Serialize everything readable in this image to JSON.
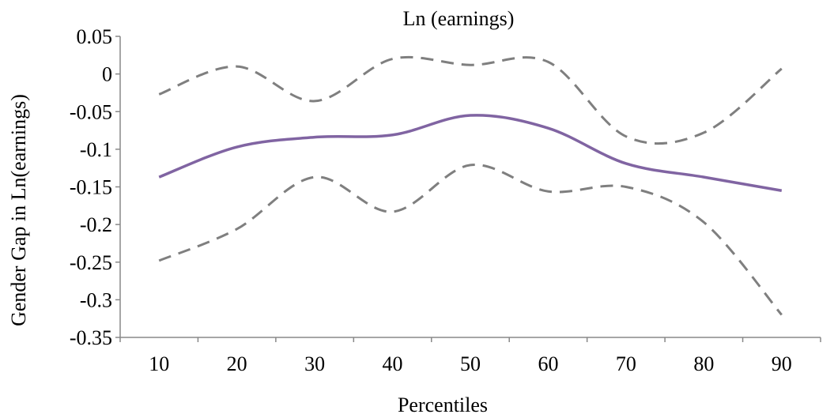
{
  "chart_data": {
    "type": "line",
    "title": "Ln (earnings)",
    "xlabel": "Percentiles",
    "ylabel": "Gender Gap in Ln(earnings)",
    "x": [
      10,
      20,
      30,
      40,
      50,
      60,
      70,
      80,
      90
    ],
    "x_tick_labels": [
      "10",
      "20",
      "30",
      "40",
      "50",
      "60",
      "70",
      "80",
      "90"
    ],
    "ylim": [
      -0.35,
      0.05
    ],
    "y_ticks": [
      0.05,
      0,
      -0.05,
      -0.1,
      -0.15,
      -0.2,
      -0.25,
      -0.3,
      -0.35
    ],
    "y_tick_labels": [
      "0.05",
      "0",
      "-0.05",
      "-0.1",
      "-0.15",
      "-0.2",
      "-0.25",
      "-0.3",
      "-0.35"
    ],
    "grid": false,
    "legend": "none",
    "series": [
      {
        "values": [
          -0.137,
          -0.097,
          -0.084,
          -0.081,
          -0.055,
          -0.072,
          -0.119,
          -0.137,
          -0.155
        ],
        "color": "#8064a2",
        "style": "solid"
      },
      {
        "values": [
          -0.027,
          0.01,
          -0.036,
          0.02,
          0.012,
          0.016,
          -0.083,
          -0.078,
          0.007
        ],
        "color": "#7f7f7f",
        "style": "dashed"
      },
      {
        "values": [
          -0.248,
          -0.206,
          -0.137,
          -0.183,
          -0.121,
          -0.156,
          -0.15,
          -0.197,
          -0.32
        ],
        "color": "#7f7f7f",
        "style": "dashed"
      }
    ]
  }
}
